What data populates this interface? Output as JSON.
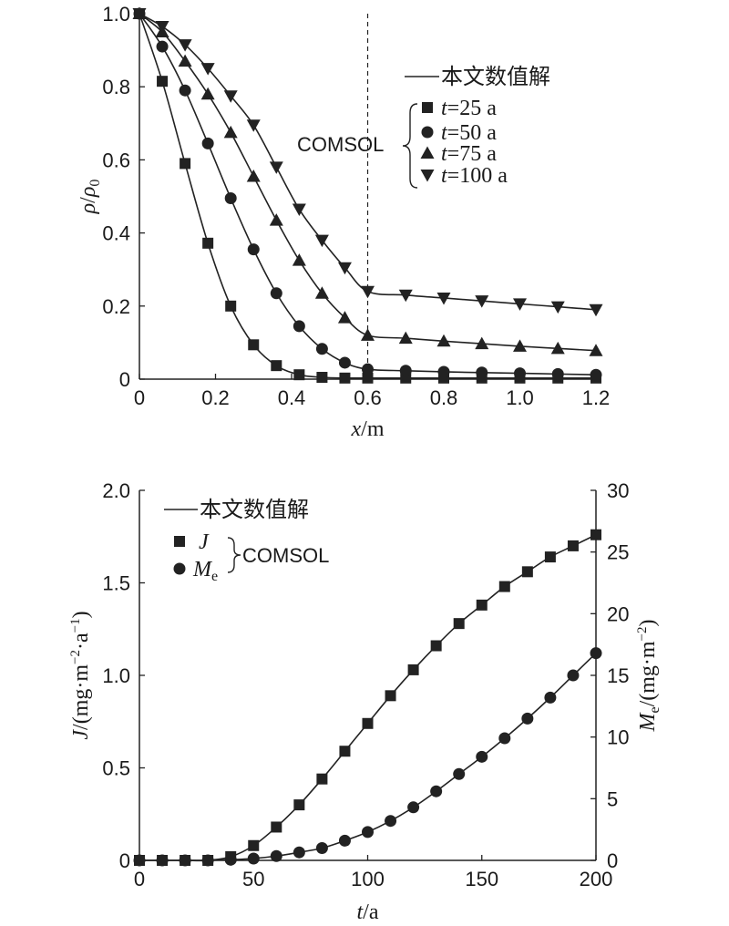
{
  "chart_data": [
    {
      "type": "line",
      "ylabel_text": "ρ/ρ0",
      "xlabel_text": "x/m",
      "xlim": [
        0,
        1.2
      ],
      "ylim": [
        0,
        1.0
      ],
      "xticks": [
        "0",
        "0.2",
        "0.4",
        "0.6",
        "0.8",
        "1.0",
        "1.2"
      ],
      "yticks": [
        "0",
        "0.2",
        "0.4",
        "0.6",
        "0.8",
        "1.0"
      ],
      "vline_x": 0.6,
      "legend": {
        "line_label": "本文数值解",
        "group_label": "COMSOL",
        "entries": [
          "t=25 a",
          "t=50 a",
          "t=75 a",
          "t=100 a"
        ]
      },
      "series": [
        {
          "name": "t=25 a",
          "marker": "square",
          "x": [
            0,
            0.06,
            0.12,
            0.18,
            0.24,
            0.3,
            0.36,
            0.42,
            0.48,
            0.54,
            0.6,
            0.7,
            0.8,
            0.9,
            1.0,
            1.1,
            1.2
          ],
          "y": [
            1.0,
            0.815,
            0.59,
            0.372,
            0.2,
            0.094,
            0.037,
            0.012,
            0.005,
            0.003,
            0.003,
            0.003,
            0.003,
            0.003,
            0.003,
            0.003,
            0.003
          ]
        },
        {
          "name": "t=50 a",
          "marker": "circle",
          "x": [
            0,
            0.06,
            0.12,
            0.18,
            0.24,
            0.3,
            0.36,
            0.42,
            0.48,
            0.54,
            0.6,
            0.7,
            0.8,
            0.9,
            1.0,
            1.1,
            1.2
          ],
          "y": [
            1.0,
            0.91,
            0.79,
            0.645,
            0.495,
            0.355,
            0.235,
            0.145,
            0.083,
            0.045,
            0.027,
            0.023,
            0.02,
            0.018,
            0.016,
            0.014,
            0.012
          ]
        },
        {
          "name": "t=75 a",
          "marker": "triangle-up",
          "x": [
            0,
            0.06,
            0.12,
            0.18,
            0.24,
            0.3,
            0.36,
            0.42,
            0.48,
            0.54,
            0.6,
            0.7,
            0.8,
            0.9,
            1.0,
            1.1,
            1.2
          ],
          "y": [
            1.0,
            0.95,
            0.87,
            0.78,
            0.675,
            0.555,
            0.435,
            0.325,
            0.235,
            0.168,
            0.12,
            0.112,
            0.104,
            0.097,
            0.09,
            0.084,
            0.078
          ]
        },
        {
          "name": "t=100 a",
          "marker": "triangle-down",
          "x": [
            0,
            0.06,
            0.12,
            0.18,
            0.24,
            0.3,
            0.36,
            0.42,
            0.48,
            0.54,
            0.6,
            0.7,
            0.8,
            0.9,
            1.0,
            1.1,
            1.2
          ],
          "y": [
            1.0,
            0.965,
            0.915,
            0.85,
            0.775,
            0.695,
            0.58,
            0.465,
            0.38,
            0.305,
            0.24,
            0.23,
            0.222,
            0.214,
            0.206,
            0.198,
            0.19
          ]
        }
      ]
    },
    {
      "type": "line",
      "ylabel_text": "J/(mg·m⁻²·a⁻¹)",
      "y2label_text": "Me/(mg·m⁻²)",
      "xlabel_text": "t/a",
      "xlim": [
        0,
        200
      ],
      "ylim": [
        0,
        2.0
      ],
      "y2lim": [
        0,
        30
      ],
      "xticks": [
        "0",
        "50",
        "100",
        "150",
        "200"
      ],
      "yticks": [
        "0",
        "0.5",
        "1.0",
        "1.5",
        "2.0"
      ],
      "y2ticks": [
        "0",
        "5",
        "10",
        "15",
        "20",
        "25",
        "30"
      ],
      "legend": {
        "line_label": "本文数值解",
        "group_label": "COMSOL",
        "entries": [
          "J",
          "Me"
        ]
      },
      "series": [
        {
          "name": "J",
          "marker": "square",
          "axis": "left",
          "x": [
            0,
            10,
            20,
            30,
            40,
            50,
            60,
            70,
            80,
            90,
            100,
            110,
            120,
            130,
            140,
            150,
            160,
            170,
            180,
            190,
            200
          ],
          "y": [
            0,
            0,
            0,
            0,
            0.02,
            0.08,
            0.18,
            0.3,
            0.44,
            0.59,
            0.74,
            0.89,
            1.03,
            1.16,
            1.28,
            1.38,
            1.48,
            1.56,
            1.64,
            1.7,
            1.76
          ]
        },
        {
          "name": "Me",
          "marker": "circle",
          "axis": "right",
          "x": [
            0,
            10,
            20,
            30,
            40,
            50,
            60,
            70,
            80,
            90,
            100,
            110,
            120,
            130,
            140,
            150,
            160,
            170,
            180,
            190,
            200
          ],
          "y": [
            0,
            0,
            0,
            0,
            0.05,
            0.15,
            0.35,
            0.65,
            1.0,
            1.6,
            2.3,
            3.2,
            4.3,
            5.6,
            7.0,
            8.4,
            9.9,
            11.5,
            13.2,
            15.0,
            16.8
          ]
        }
      ]
    }
  ]
}
